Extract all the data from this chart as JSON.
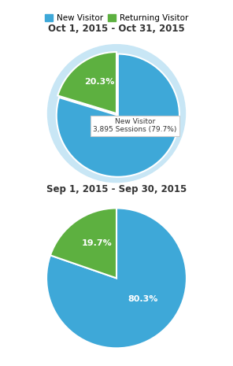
{
  "background_color": "#ffffff",
  "legend": {
    "new_visitor_color": "#3ea8d8",
    "returning_visitor_color": "#5db040",
    "new_label": "New Visitor",
    "returning_label": "Returning Visitor"
  },
  "chart1": {
    "title": "Oct 1, 2015 - Oct 31, 2015",
    "new_pct": 79.7,
    "returning_pct": 20.3,
    "new_color": "#3ea8d8",
    "returning_color": "#5db040",
    "ring_color": "#c8e6f5",
    "tooltip_title": "New Visitor",
    "tooltip_body": "3,895 Sessions (79.7%)",
    "returning_label": "20.3%"
  },
  "chart2": {
    "title": "Sep 1, 2015 - Sep 30, 2015",
    "new_pct": 80.3,
    "returning_pct": 19.7,
    "new_color": "#3ea8d8",
    "returning_color": "#5db040",
    "new_label": "80.3%",
    "returning_label": "19.7%"
  }
}
